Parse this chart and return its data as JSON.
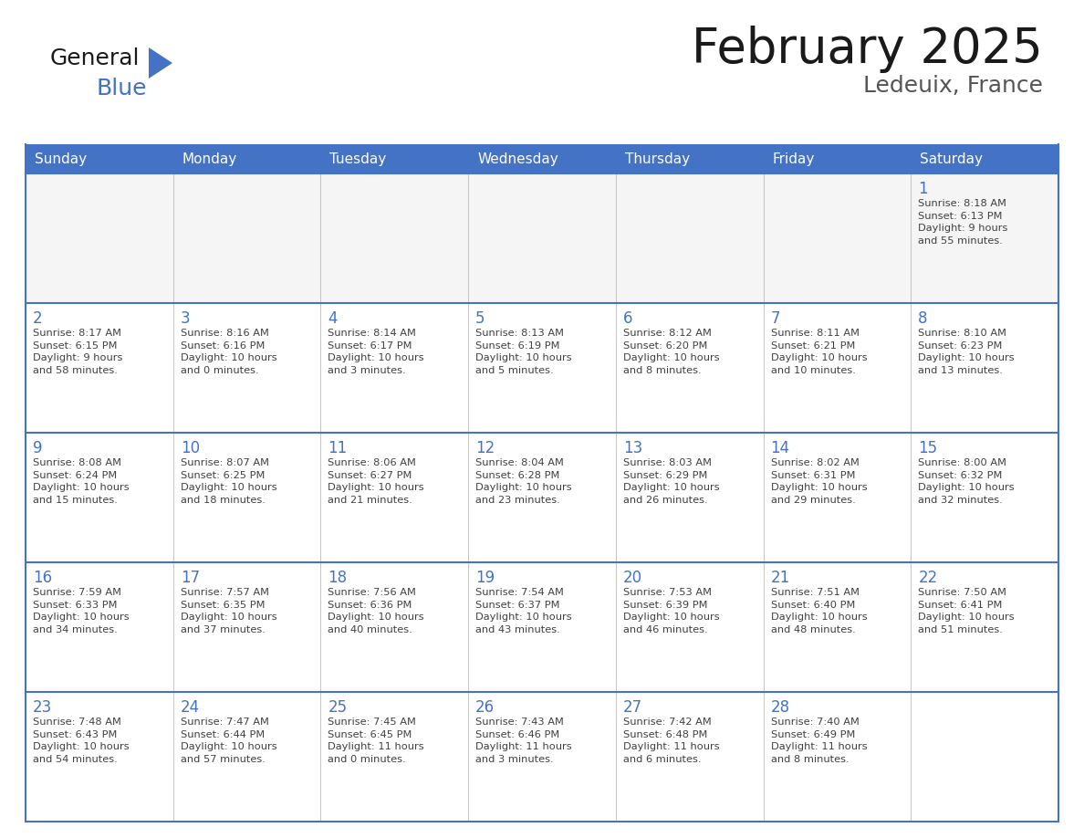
{
  "title": "February 2025",
  "subtitle": "Ledeuix, France",
  "header_bg_color": "#4472C4",
  "header_text_color": "#FFFFFF",
  "border_color": "#4472C4",
  "row_border_color": "#4472C4",
  "day_number_color": "#4472C4",
  "text_color": "#404040",
  "days_of_week": [
    "Sunday",
    "Monday",
    "Tuesday",
    "Wednesday",
    "Thursday",
    "Friday",
    "Saturday"
  ],
  "calendar_data": [
    [
      {
        "day": null,
        "info": null
      },
      {
        "day": null,
        "info": null
      },
      {
        "day": null,
        "info": null
      },
      {
        "day": null,
        "info": null
      },
      {
        "day": null,
        "info": null
      },
      {
        "day": null,
        "info": null
      },
      {
        "day": "1",
        "info": "Sunrise: 8:18 AM\nSunset: 6:13 PM\nDaylight: 9 hours\nand 55 minutes."
      }
    ],
    [
      {
        "day": "2",
        "info": "Sunrise: 8:17 AM\nSunset: 6:15 PM\nDaylight: 9 hours\nand 58 minutes."
      },
      {
        "day": "3",
        "info": "Sunrise: 8:16 AM\nSunset: 6:16 PM\nDaylight: 10 hours\nand 0 minutes."
      },
      {
        "day": "4",
        "info": "Sunrise: 8:14 AM\nSunset: 6:17 PM\nDaylight: 10 hours\nand 3 minutes."
      },
      {
        "day": "5",
        "info": "Sunrise: 8:13 AM\nSunset: 6:19 PM\nDaylight: 10 hours\nand 5 minutes."
      },
      {
        "day": "6",
        "info": "Sunrise: 8:12 AM\nSunset: 6:20 PM\nDaylight: 10 hours\nand 8 minutes."
      },
      {
        "day": "7",
        "info": "Sunrise: 8:11 AM\nSunset: 6:21 PM\nDaylight: 10 hours\nand 10 minutes."
      },
      {
        "day": "8",
        "info": "Sunrise: 8:10 AM\nSunset: 6:23 PM\nDaylight: 10 hours\nand 13 minutes."
      }
    ],
    [
      {
        "day": "9",
        "info": "Sunrise: 8:08 AM\nSunset: 6:24 PM\nDaylight: 10 hours\nand 15 minutes."
      },
      {
        "day": "10",
        "info": "Sunrise: 8:07 AM\nSunset: 6:25 PM\nDaylight: 10 hours\nand 18 minutes."
      },
      {
        "day": "11",
        "info": "Sunrise: 8:06 AM\nSunset: 6:27 PM\nDaylight: 10 hours\nand 21 minutes."
      },
      {
        "day": "12",
        "info": "Sunrise: 8:04 AM\nSunset: 6:28 PM\nDaylight: 10 hours\nand 23 minutes."
      },
      {
        "day": "13",
        "info": "Sunrise: 8:03 AM\nSunset: 6:29 PM\nDaylight: 10 hours\nand 26 minutes."
      },
      {
        "day": "14",
        "info": "Sunrise: 8:02 AM\nSunset: 6:31 PM\nDaylight: 10 hours\nand 29 minutes."
      },
      {
        "day": "15",
        "info": "Sunrise: 8:00 AM\nSunset: 6:32 PM\nDaylight: 10 hours\nand 32 minutes."
      }
    ],
    [
      {
        "day": "16",
        "info": "Sunrise: 7:59 AM\nSunset: 6:33 PM\nDaylight: 10 hours\nand 34 minutes."
      },
      {
        "day": "17",
        "info": "Sunrise: 7:57 AM\nSunset: 6:35 PM\nDaylight: 10 hours\nand 37 minutes."
      },
      {
        "day": "18",
        "info": "Sunrise: 7:56 AM\nSunset: 6:36 PM\nDaylight: 10 hours\nand 40 minutes."
      },
      {
        "day": "19",
        "info": "Sunrise: 7:54 AM\nSunset: 6:37 PM\nDaylight: 10 hours\nand 43 minutes."
      },
      {
        "day": "20",
        "info": "Sunrise: 7:53 AM\nSunset: 6:39 PM\nDaylight: 10 hours\nand 46 minutes."
      },
      {
        "day": "21",
        "info": "Sunrise: 7:51 AM\nSunset: 6:40 PM\nDaylight: 10 hours\nand 48 minutes."
      },
      {
        "day": "22",
        "info": "Sunrise: 7:50 AM\nSunset: 6:41 PM\nDaylight: 10 hours\nand 51 minutes."
      }
    ],
    [
      {
        "day": "23",
        "info": "Sunrise: 7:48 AM\nSunset: 6:43 PM\nDaylight: 10 hours\nand 54 minutes."
      },
      {
        "day": "24",
        "info": "Sunrise: 7:47 AM\nSunset: 6:44 PM\nDaylight: 10 hours\nand 57 minutes."
      },
      {
        "day": "25",
        "info": "Sunrise: 7:45 AM\nSunset: 6:45 PM\nDaylight: 11 hours\nand 0 minutes."
      },
      {
        "day": "26",
        "info": "Sunrise: 7:43 AM\nSunset: 6:46 PM\nDaylight: 11 hours\nand 3 minutes."
      },
      {
        "day": "27",
        "info": "Sunrise: 7:42 AM\nSunset: 6:48 PM\nDaylight: 11 hours\nand 6 minutes."
      },
      {
        "day": "28",
        "info": "Sunrise: 7:40 AM\nSunset: 6:49 PM\nDaylight: 11 hours\nand 8 minutes."
      },
      {
        "day": null,
        "info": null
      }
    ]
  ],
  "logo_general_color": "#1a1a1a",
  "logo_blue_color": "#4472C4",
  "logo_triangle_color": "#4472C4",
  "fig_width": 11.88,
  "fig_height": 9.18,
  "dpi": 100
}
